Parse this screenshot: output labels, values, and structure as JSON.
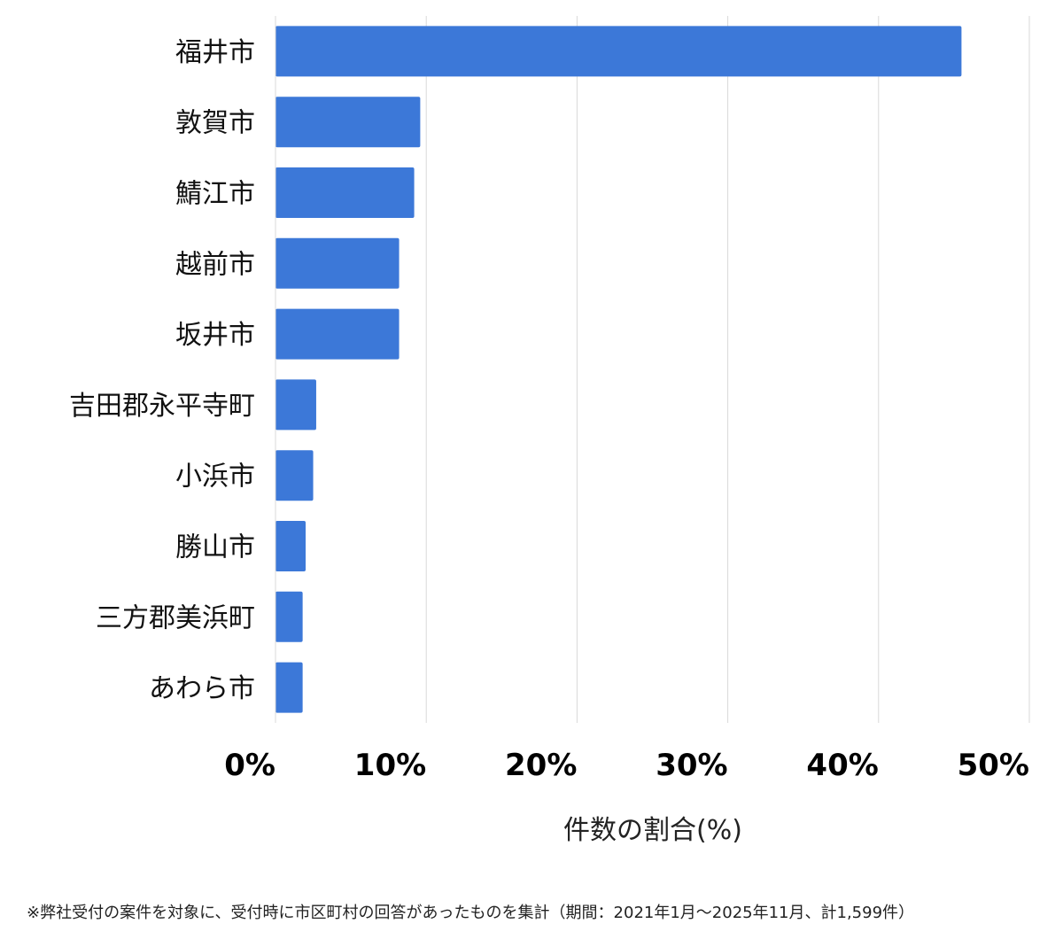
{
  "chart_data": {
    "type": "bar",
    "orientation": "horizontal",
    "categories": [
      "福井市",
      "敦賀市",
      "鯖江市",
      "越前市",
      "坂井市",
      "吉田郡永平寺町",
      "小浜市",
      "勝山市",
      "三方郡美浜町",
      "あわら市"
    ],
    "values": [
      45.5,
      9.6,
      9.2,
      8.2,
      8.2,
      2.7,
      2.5,
      2.0,
      1.8,
      1.8
    ],
    "xlim": [
      0,
      50
    ],
    "xticks": [
      "0%",
      "10%",
      "20%",
      "30%",
      "40%",
      "50%"
    ],
    "xlabel": "件数の割合(%)",
    "ylabel": "",
    "grid": true,
    "bar_color": "#3c78d8"
  },
  "footnote": "※弊社受付の案件を対象に、受付時に市区町村の回答があったものを集計（期間：2021年1月～2025年11月、計1,599件）"
}
